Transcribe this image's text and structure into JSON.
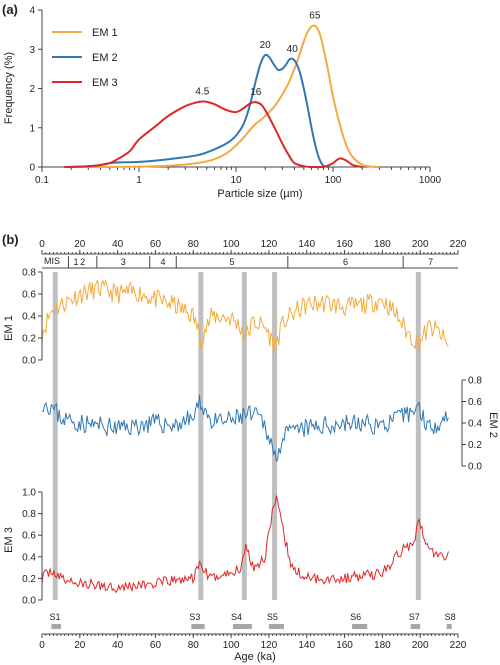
{
  "panel_a": {
    "label": "(a)",
    "chart_data": {
      "type": "line",
      "xscale": "log",
      "xlim": [
        0.1,
        1000
      ],
      "ylim": [
        0,
        4
      ],
      "xlabel": "Particle size (µm)",
      "ylabel": "Frequency (%)",
      "xticks": [
        "0.1",
        "1",
        "10",
        "100",
        "1000"
      ],
      "yticks": [
        "0",
        "1",
        "2",
        "3",
        "4"
      ],
      "legend_position": "top-left",
      "series": [
        {
          "name": "EM 1",
          "color": "#f4ab3c",
          "x": [
            0.17,
            0.5,
            1,
            2,
            4,
            6,
            8,
            10,
            12,
            14,
            16,
            18,
            20,
            25,
            30,
            35,
            40,
            45,
            50,
            55,
            60,
            65,
            70,
            75,
            80,
            90,
            100,
            120,
            140,
            160,
            200,
            250,
            300
          ],
          "y": [
            0,
            0,
            0.01,
            0.03,
            0.1,
            0.2,
            0.35,
            0.55,
            0.75,
            0.95,
            1.1,
            1.2,
            1.3,
            1.55,
            1.85,
            2.15,
            2.5,
            2.85,
            3.2,
            3.45,
            3.58,
            3.6,
            3.5,
            3.3,
            3.0,
            2.4,
            1.8,
            1.0,
            0.5,
            0.25,
            0.06,
            0.01,
            0
          ]
        },
        {
          "name": "EM 2",
          "color": "#2f78b4",
          "x": [
            0.17,
            0.3,
            0.4,
            0.5,
            0.7,
            1,
            2,
            4,
            6,
            8,
            10,
            12,
            14,
            16,
            18,
            20,
            22,
            24,
            27,
            30,
            33,
            36,
            40,
            45,
            50,
            55,
            60,
            65,
            70,
            75,
            80,
            90
          ],
          "y": [
            0,
            0.02,
            0.05,
            0.1,
            0.12,
            0.13,
            0.2,
            0.3,
            0.45,
            0.6,
            0.8,
            1.1,
            1.6,
            2.2,
            2.65,
            2.85,
            2.8,
            2.65,
            2.48,
            2.5,
            2.62,
            2.75,
            2.72,
            2.45,
            2.0,
            1.5,
            1.0,
            0.6,
            0.3,
            0.12,
            0.03,
            0
          ]
        },
        {
          "name": "EM 3",
          "color": "#e02626",
          "x": [
            0.17,
            0.3,
            0.4,
            0.5,
            0.6,
            0.8,
            1,
            1.5,
            2,
            3,
            4,
            4.5,
            5,
            6,
            8,
            10,
            12,
            14,
            16,
            18,
            20,
            25,
            30,
            35,
            40,
            50,
            60,
            80,
            100,
            110,
            120,
            140,
            160,
            200
          ],
          "y": [
            0,
            0.02,
            0.05,
            0.1,
            0.2,
            0.4,
            0.7,
            1.05,
            1.3,
            1.55,
            1.65,
            1.67,
            1.66,
            1.6,
            1.45,
            1.4,
            1.5,
            1.62,
            1.65,
            1.6,
            1.45,
            1.0,
            0.6,
            0.3,
            0.1,
            0.02,
            0,
            0,
            0.1,
            0.18,
            0.22,
            0.15,
            0.05,
            0
          ]
        }
      ],
      "annotations": [
        "65",
        "20",
        "40",
        "4.5",
        "16"
      ]
    }
  },
  "panel_b": {
    "label": "(b)",
    "xlabel": "Age (ka)",
    "xlim": [
      0,
      220
    ],
    "xticks": [
      "0",
      "20",
      "40",
      "60",
      "80",
      "100",
      "120",
      "140",
      "160",
      "180",
      "200",
      "220"
    ],
    "mis_label": "MIS",
    "mis_stages": [
      {
        "label": "1",
        "start": 0,
        "end": 14
      },
      {
        "label": "2",
        "start": 14,
        "end": 29
      },
      {
        "label": "3",
        "start": 29,
        "end": 57
      },
      {
        "label": "4",
        "start": 57,
        "end": 71
      },
      {
        "label": "5",
        "start": 71,
        "end": 130
      },
      {
        "label": "6",
        "start": 130,
        "end": 191
      },
      {
        "label": "7",
        "start": 191,
        "end": 220
      }
    ],
    "gray_bands": [
      7,
      84,
      107,
      123,
      199
    ],
    "events": [
      {
        "label": "S1",
        "start": 5,
        "end": 10
      },
      {
        "label": "S3",
        "start": 79,
        "end": 86
      },
      {
        "label": "S4",
        "start": 101,
        "end": 111
      },
      {
        "label": "S5",
        "start": 120,
        "end": 128
      },
      {
        "label": "S6",
        "start": 164,
        "end": 172
      },
      {
        "label": "S7",
        "start": 195,
        "end": 200
      },
      {
        "label": "S8",
        "start": 214,
        "end": 215
      }
    ],
    "tracks": [
      {
        "name": "EM 1",
        "color": "#f4ab3c",
        "axis": "left",
        "anchors": [
          [
            0,
            0.25
          ],
          [
            5,
            0.45
          ],
          [
            10,
            0.5
          ],
          [
            15,
            0.55
          ],
          [
            20,
            0.6
          ],
          [
            30,
            0.65
          ],
          [
            40,
            0.6
          ],
          [
            50,
            0.62
          ],
          [
            60,
            0.55
          ],
          [
            70,
            0.5
          ],
          [
            75,
            0.45
          ],
          [
            80,
            0.4
          ],
          [
            84,
            0.2
          ],
          [
            90,
            0.4
          ],
          [
            100,
            0.38
          ],
          [
            105,
            0.3
          ],
          [
            108,
            0.22
          ],
          [
            112,
            0.35
          ],
          [
            118,
            0.3
          ],
          [
            123,
            0.12
          ],
          [
            128,
            0.35
          ],
          [
            135,
            0.45
          ],
          [
            140,
            0.5
          ],
          [
            150,
            0.52
          ],
          [
            160,
            0.48
          ],
          [
            170,
            0.5
          ],
          [
            180,
            0.55
          ],
          [
            188,
            0.4
          ],
          [
            193,
            0.25
          ],
          [
            199,
            0.15
          ],
          [
            205,
            0.3
          ],
          [
            210,
            0.25
          ],
          [
            215,
            0.12
          ]
        ],
        "noise": 0.09,
        "seed": 11
      },
      {
        "name": "EM 2",
        "color": "#2f78b4",
        "axis": "right",
        "ylabel": "EM 2",
        "yticks": [
          "0.0",
          "0.2",
          "0.4",
          "0.6",
          "0.8"
        ],
        "anchors": [
          [
            0,
            0.6
          ],
          [
            5,
            0.55
          ],
          [
            10,
            0.45
          ],
          [
            20,
            0.4
          ],
          [
            40,
            0.35
          ],
          [
            60,
            0.4
          ],
          [
            70,
            0.38
          ],
          [
            80,
            0.45
          ],
          [
            84,
            0.6
          ],
          [
            90,
            0.4
          ],
          [
            100,
            0.42
          ],
          [
            108,
            0.48
          ],
          [
            115,
            0.45
          ],
          [
            120,
            0.3
          ],
          [
            123,
            0.08
          ],
          [
            126,
            0.2
          ],
          [
            130,
            0.3
          ],
          [
            140,
            0.35
          ],
          [
            160,
            0.4
          ],
          [
            180,
            0.38
          ],
          [
            190,
            0.45
          ],
          [
            199,
            0.55
          ],
          [
            205,
            0.35
          ],
          [
            215,
            0.48
          ]
        ],
        "noise": 0.09,
        "seed": 23
      },
      {
        "name": "EM 3",
        "color": "#e02626",
        "axis": "left",
        "ylabel": "EM 3",
        "yticks": [
          "0.0",
          "0.2",
          "0.4",
          "0.6",
          "0.8",
          "1.0"
        ],
        "anchors": [
          [
            0,
            0.2
          ],
          [
            5,
            0.28
          ],
          [
            10,
            0.2
          ],
          [
            20,
            0.15
          ],
          [
            40,
            0.12
          ],
          [
            60,
            0.15
          ],
          [
            70,
            0.18
          ],
          [
            80,
            0.2
          ],
          [
            84,
            0.35
          ],
          [
            88,
            0.2
          ],
          [
            100,
            0.25
          ],
          [
            105,
            0.3
          ],
          [
            108,
            0.5
          ],
          [
            112,
            0.3
          ],
          [
            118,
            0.4
          ],
          [
            122,
            0.85
          ],
          [
            124,
            0.92
          ],
          [
            128,
            0.6
          ],
          [
            132,
            0.3
          ],
          [
            140,
            0.2
          ],
          [
            160,
            0.2
          ],
          [
            180,
            0.25
          ],
          [
            190,
            0.45
          ],
          [
            197,
            0.55
          ],
          [
            199,
            0.8
          ],
          [
            203,
            0.5
          ],
          [
            210,
            0.4
          ],
          [
            215,
            0.42
          ]
        ],
        "noise": 0.05,
        "seed": 37
      }
    ],
    "em1_ylabel": "EM 1",
    "em1_yticks": [
      "0.0",
      "0.2",
      "0.4",
      "0.6",
      "0.8"
    ]
  }
}
